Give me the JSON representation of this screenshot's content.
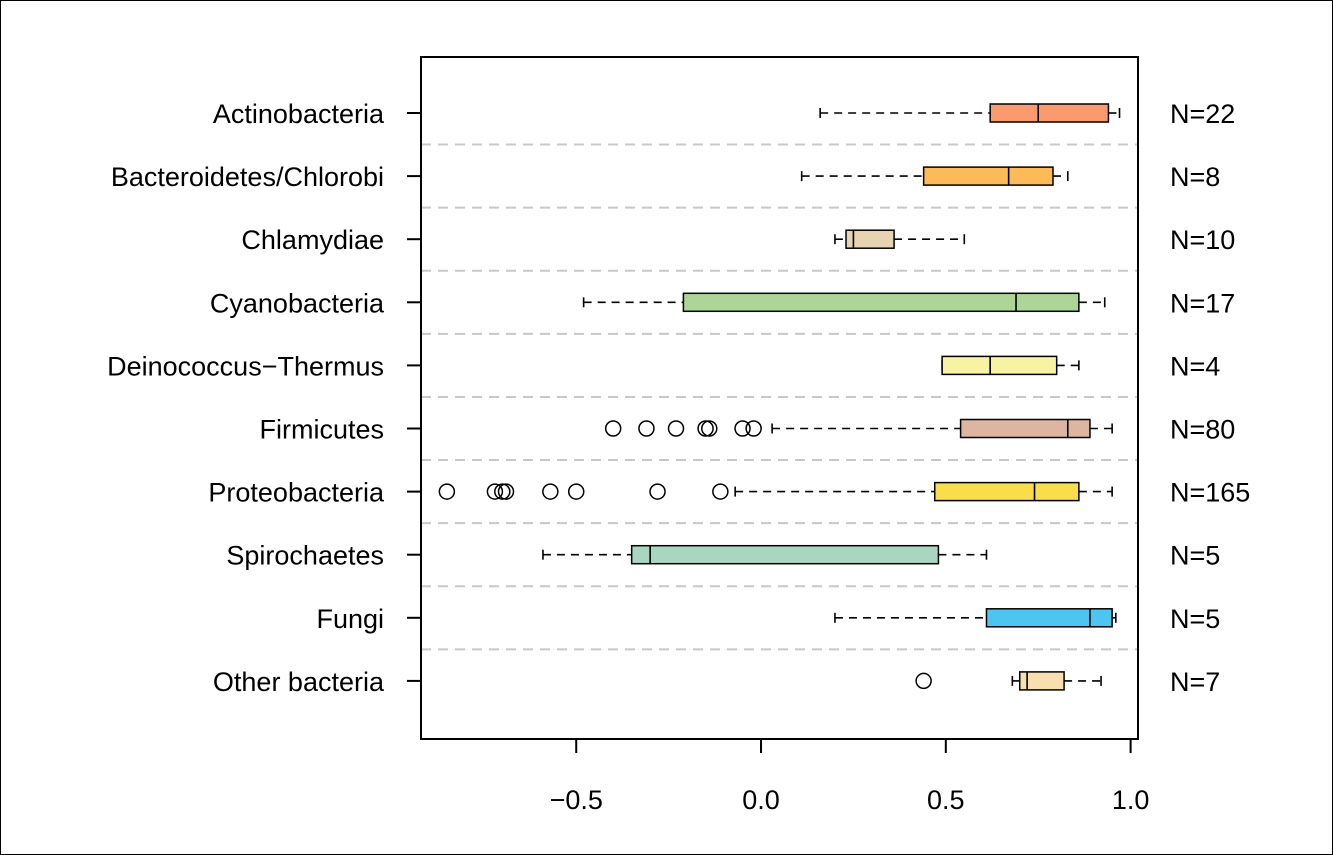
{
  "chart_data": {
    "type": "boxplot",
    "orientation": "horizontal",
    "xlim": [
      -0.92,
      1.02
    ],
    "x_ticks": [
      -0.5,
      0.0,
      0.5,
      1.0
    ],
    "x_tick_labels": [
      "−0.5",
      "0.0",
      "0.5",
      "1.0"
    ],
    "grid": "dashed horizontal separators between groups",
    "groups": [
      {
        "label": "Actinobacteria",
        "n_label": "N=22",
        "color": "#fc9a6f",
        "whisker_low": 0.16,
        "q1": 0.62,
        "median": 0.75,
        "q3": 0.94,
        "whisker_high": 0.97,
        "outliers": []
      },
      {
        "label": "Bacteroidetes/Chlorobi",
        "n_label": "N=8",
        "color": "#fdba59",
        "whisker_low": 0.11,
        "q1": 0.44,
        "median": 0.67,
        "q3": 0.79,
        "whisker_high": 0.83,
        "outliers": []
      },
      {
        "label": "Chlamydiae",
        "n_label": "N=10",
        "color": "#e7d4b1",
        "whisker_low": 0.2,
        "q1": 0.23,
        "median": 0.25,
        "q3": 0.36,
        "whisker_high": 0.55,
        "outliers": []
      },
      {
        "label": "Cyanobacteria",
        "n_label": "N=17",
        "color": "#acd597",
        "whisker_low": -0.48,
        "q1": -0.21,
        "median": 0.69,
        "q3": 0.86,
        "whisker_high": 0.93,
        "outliers": []
      },
      {
        "label": "Deinococcus−Thermus",
        "n_label": "N=4",
        "color": "#f8f3a3",
        "whisker_low": 0.49,
        "q1": 0.49,
        "median": 0.62,
        "q3": 0.8,
        "whisker_high": 0.86,
        "outliers": []
      },
      {
        "label": "Firmicutes",
        "n_label": "N=80",
        "color": "#ddb5a0",
        "whisker_low": 0.03,
        "q1": 0.54,
        "median": 0.83,
        "q3": 0.89,
        "whisker_high": 0.95,
        "outliers": [
          -0.4,
          -0.31,
          -0.23,
          -0.15,
          -0.14,
          -0.05,
          -0.02
        ]
      },
      {
        "label": "Proteobacteria",
        "n_label": "N=165",
        "color": "#fadd4a",
        "whisker_low": -0.07,
        "q1": 0.47,
        "median": 0.74,
        "q3": 0.86,
        "whisker_high": 0.95,
        "outliers": [
          -0.85,
          -0.72,
          -0.7,
          -0.69,
          -0.57,
          -0.5,
          -0.28,
          -0.11
        ]
      },
      {
        "label": "Spirochaetes",
        "n_label": "N=5",
        "color": "#a8d6c1",
        "whisker_low": -0.59,
        "q1": -0.35,
        "median": -0.3,
        "q3": 0.48,
        "whisker_high": 0.61,
        "outliers": []
      },
      {
        "label": "Fungi",
        "n_label": "N=5",
        "color": "#4ec4f0",
        "whisker_low": 0.2,
        "q1": 0.61,
        "median": 0.89,
        "q3": 0.95,
        "whisker_high": 0.96,
        "outliers": []
      },
      {
        "label": "Other bacteria",
        "n_label": "N=7",
        "color": "#f7dfb0",
        "whisker_low": 0.68,
        "q1": 0.7,
        "median": 0.72,
        "q3": 0.82,
        "whisker_high": 0.92,
        "outliers": [
          0.44
        ]
      }
    ]
  }
}
